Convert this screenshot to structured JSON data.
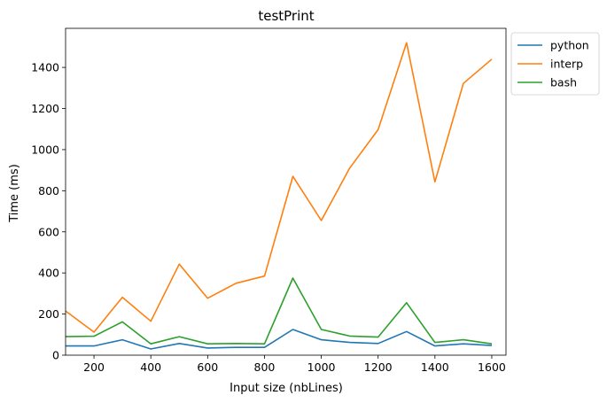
{
  "chart_data": {
    "type": "line",
    "title": "testPrint",
    "xlabel": "Input size (nbLines)",
    "ylabel": "Time (ms)",
    "x": [
      100,
      200,
      300,
      400,
      500,
      600,
      700,
      800,
      900,
      1000,
      1100,
      1200,
      1300,
      1400,
      1500,
      1600
    ],
    "xlim": [
      100,
      1650
    ],
    "ylim": [
      0,
      1590
    ],
    "xticks": [
      200,
      400,
      600,
      800,
      1000,
      1200,
      1400,
      1600
    ],
    "yticks": [
      0,
      200,
      400,
      600,
      800,
      1000,
      1200,
      1400
    ],
    "grid": false,
    "legend_position": "upper-right-outside",
    "series": [
      {
        "name": "python",
        "color": "#1f77b4",
        "values": [
          45,
          45,
          75,
          30,
          57,
          35,
          38,
          38,
          125,
          75,
          62,
          57,
          115,
          45,
          55,
          47
        ]
      },
      {
        "name": "interp",
        "color": "#ff7f0e",
        "values": [
          215,
          112,
          282,
          165,
          443,
          277,
          350,
          385,
          870,
          655,
          910,
          1097,
          1520,
          843,
          1322,
          1440
        ]
      },
      {
        "name": "bash",
        "color": "#2ca02c",
        "values": [
          90,
          92,
          162,
          55,
          90,
          55,
          57,
          55,
          375,
          125,
          93,
          88,
          255,
          62,
          75,
          55
        ]
      }
    ]
  }
}
